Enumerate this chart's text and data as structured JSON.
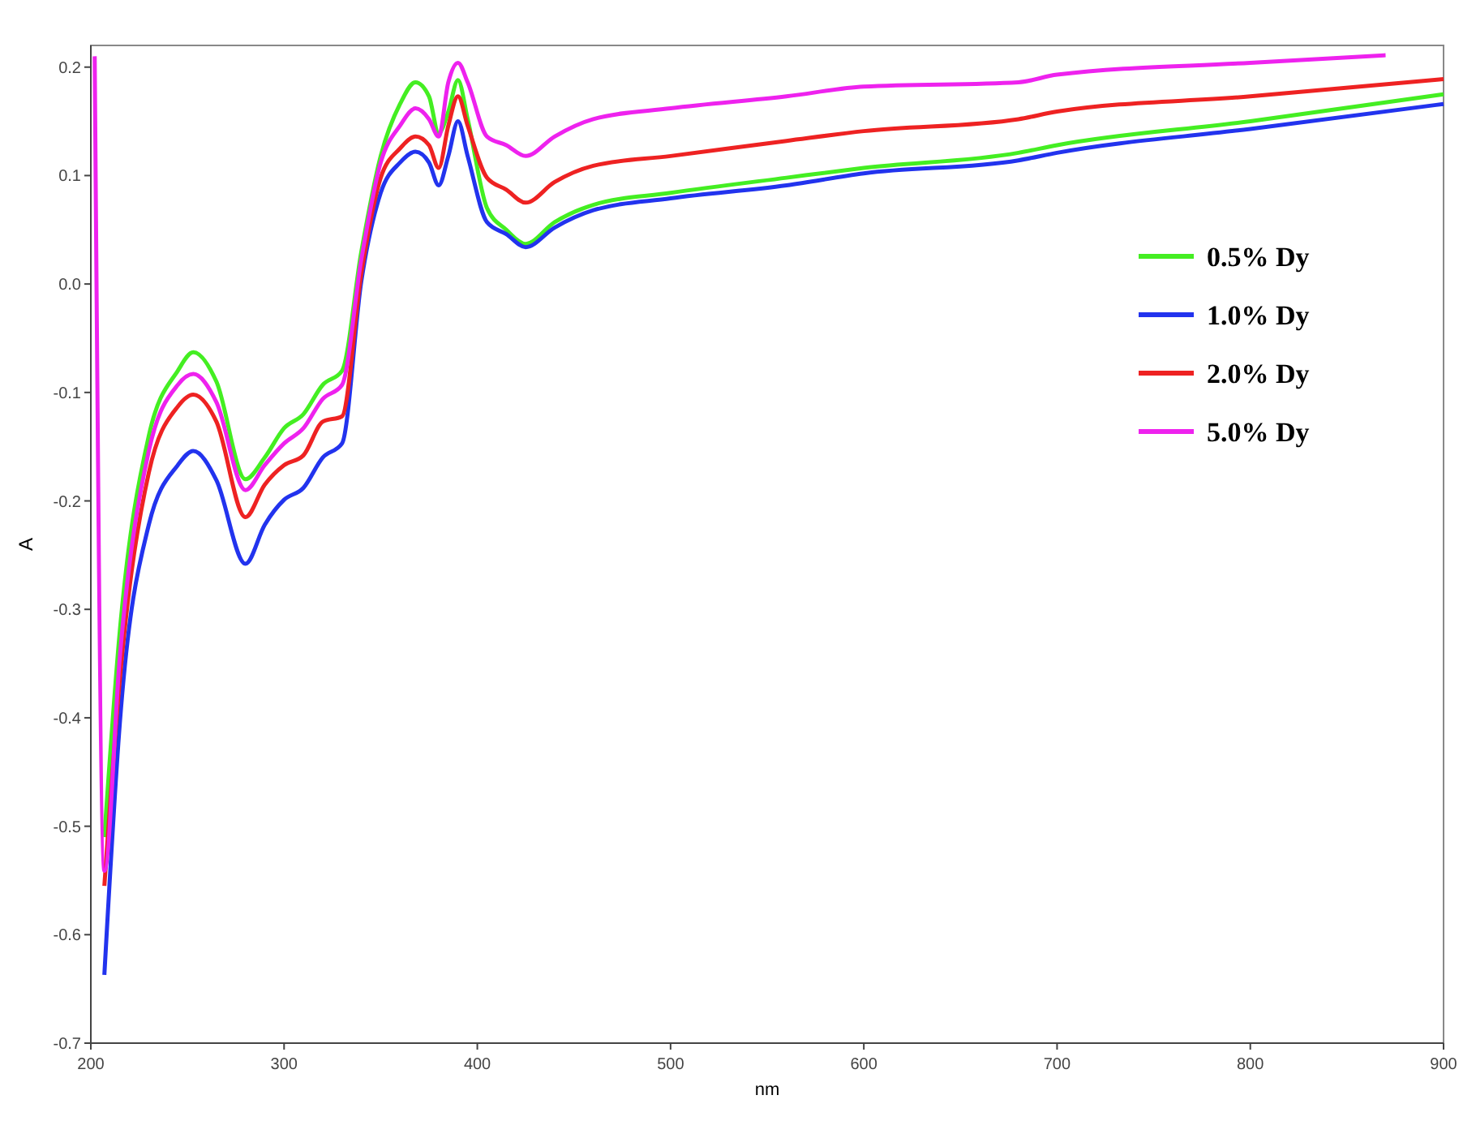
{
  "chart_data": {
    "type": "line",
    "xlabel": "nm",
    "ylabel": "A",
    "xlim": [
      200,
      900
    ],
    "ylim": [
      -0.7,
      0.22
    ],
    "xticks": [
      200,
      300,
      400,
      500,
      600,
      700,
      800,
      900
    ],
    "yticks": [
      -0.7,
      -0.6,
      -0.5,
      -0.4,
      -0.3,
      -0.2,
      -0.1,
      {
        "value": 0,
        "label": "0.0"
      },
      0.1,
      0.2
    ],
    "grid": false,
    "legend": "right",
    "marker": "none",
    "line_style": "solid",
    "x": [
      207,
      215,
      230,
      245,
      253,
      265,
      280,
      290,
      300,
      310,
      320,
      330,
      340,
      350,
      360,
      368,
      375,
      380,
      385,
      390,
      395,
      405,
      415,
      425,
      440,
      460,
      500,
      560,
      600,
      680,
      700,
      800,
      900
    ],
    "series": [
      {
        "name": "0.5% Dy",
        "color": "#44ee22",
        "values": [
          -0.51,
          -0.32,
          -0.14,
          -0.08,
          -0.063,
          -0.09,
          -0.18,
          -0.16,
          -0.133,
          -0.12,
          -0.093,
          -0.08,
          0.03,
          0.118,
          0.166,
          0.186,
          0.173,
          0.139,
          0.159,
          0.188,
          0.152,
          0.07,
          0.05,
          0.037,
          0.057,
          0.073,
          0.084,
          0.098,
          0.107,
          0.121,
          0.128,
          0.15,
          0.175
        ]
      },
      {
        "name": "1.0% Dy",
        "color": "#2233ee",
        "values": [
          -0.637,
          -0.405,
          -0.222,
          -0.167,
          -0.154,
          -0.181,
          -0.258,
          -0.222,
          -0.199,
          -0.188,
          -0.16,
          -0.147,
          0.003,
          0.084,
          0.112,
          0.122,
          0.112,
          0.091,
          0.118,
          0.15,
          0.118,
          0.057,
          0.046,
          0.034,
          0.052,
          0.068,
          0.079,
          0.091,
          0.102,
          0.114,
          0.121,
          0.143,
          0.166
        ]
      },
      {
        "name": "2.0% Dy",
        "color": "#ee2222",
        "values": [
          -0.555,
          -0.365,
          -0.174,
          -0.113,
          -0.102,
          -0.127,
          -0.215,
          -0.185,
          -0.167,
          -0.158,
          -0.127,
          -0.122,
          0.01,
          0.098,
          0.125,
          0.136,
          0.128,
          0.107,
          0.146,
          0.173,
          0.146,
          0.098,
          0.087,
          0.075,
          0.094,
          0.109,
          0.118,
          0.132,
          0.141,
          0.152,
          0.159,
          0.173,
          0.189
        ]
      },
      {
        "name": "5.0% Dy",
        "color": "#ee22ee",
        "x": [
          202,
          207,
          215,
          230,
          245,
          253,
          265,
          280,
          290,
          300,
          310,
          320,
          330,
          340,
          350,
          360,
          368,
          375,
          380,
          385,
          390,
          395,
          405,
          415,
          425,
          440,
          460,
          500,
          560,
          600,
          680,
          700,
          800,
          870
        ],
        "values": [
          0.21,
          -0.541,
          -0.344,
          -0.154,
          -0.093,
          -0.083,
          -0.109,
          -0.19,
          -0.167,
          -0.147,
          -0.133,
          -0.106,
          -0.093,
          0.023,
          0.112,
          0.146,
          0.162,
          0.152,
          0.136,
          0.186,
          0.204,
          0.186,
          0.136,
          0.128,
          0.118,
          0.136,
          0.152,
          0.162,
          0.173,
          0.182,
          0.186,
          0.193,
          0.204,
          0.211
        ]
      }
    ]
  }
}
